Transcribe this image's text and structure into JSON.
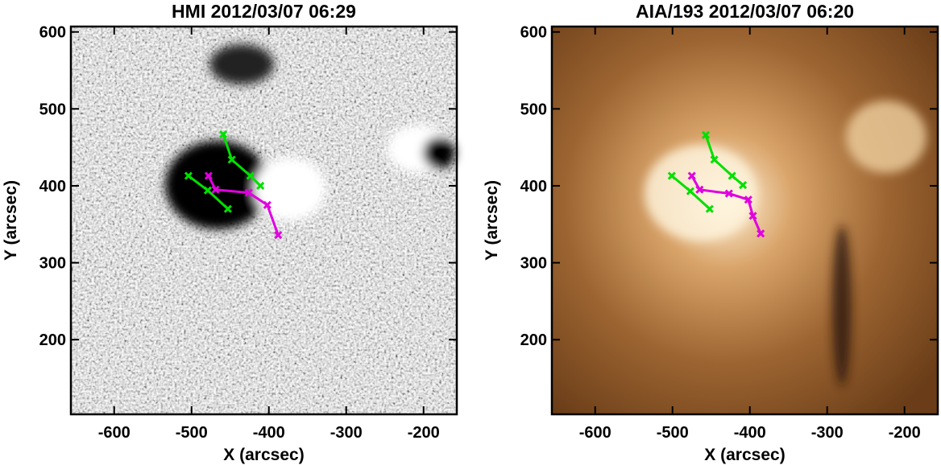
{
  "chart_data": [
    {
      "type": "line",
      "title": "HMI 2012/03/07 06:29",
      "x_label": "X (arcsec)",
      "y_label": "Y (arcsec)",
      "xlim": [
        -656,
        -157
      ],
      "ylim": [
        103,
        607
      ],
      "xticks": [
        -600,
        -500,
        -400,
        -300,
        -200
      ],
      "yticks": [
        200,
        300,
        400,
        500,
        600
      ],
      "series": [
        {
          "color": "#00e000",
          "x": [
            -459,
            -448,
            -424,
            -411
          ],
          "values": [
            467,
            434,
            413,
            400
          ]
        },
        {
          "color": "#00e000",
          "x": [
            -504,
            -479,
            -453
          ],
          "values": [
            413,
            394,
            370
          ]
        },
        {
          "color": "#e000e0",
          "x": [
            -478,
            -469,
            -426,
            -402,
            -388
          ],
          "values": [
            413,
            395,
            391,
            375,
            336
          ]
        }
      ]
    },
    {
      "type": "line",
      "title": "AIA/193 2012/03/07 06:20",
      "x_label": "X (arcsec)",
      "y_label": "Y (arcsec)",
      "xlim": [
        -656,
        -157
      ],
      "ylim": [
        103,
        607
      ],
      "xticks": [
        -600,
        -500,
        -400,
        -300,
        -200
      ],
      "yticks": [
        200,
        300,
        400,
        500,
        600
      ],
      "series": [
        {
          "color": "#00e000",
          "x": [
            -457,
            -446,
            -423,
            -409
          ],
          "values": [
            466,
            434,
            413,
            401
          ]
        },
        {
          "color": "#00e000",
          "x": [
            -501,
            -477,
            -452
          ],
          "values": [
            413,
            393,
            370
          ]
        },
        {
          "color": "#e000e0",
          "x": [
            -475,
            -465,
            -427,
            -402,
            -396,
            -386
          ],
          "values": [
            413,
            395,
            390,
            382,
            361,
            338
          ]
        }
      ]
    }
  ]
}
